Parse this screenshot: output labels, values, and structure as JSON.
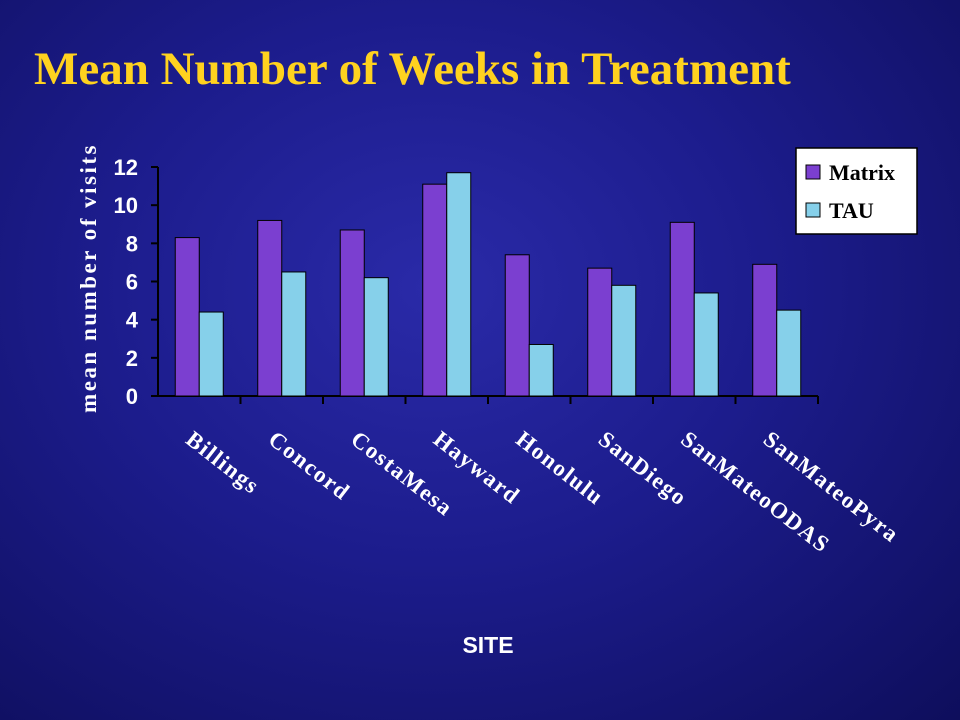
{
  "chart_data": {
    "type": "bar",
    "title": "Mean Number of Weeks in Treatment",
    "xlabel": "SITE",
    "ylabel": "mean number of visits",
    "categories": [
      "Billings",
      "Concord",
      "CostaMesa",
      "Hayward",
      "Honolulu",
      "SanDiego",
      "SanMateoODAS",
      "SanMateoPyra"
    ],
    "series": [
      {
        "name": "Matrix",
        "color": "#7b3fd0",
        "values": [
          8.3,
          9.2,
          8.7,
          11.1,
          7.4,
          6.7,
          9.1,
          6.9
        ]
      },
      {
        "name": "TAU",
        "color": "#86d0ea",
        "values": [
          4.4,
          6.5,
          6.2,
          11.7,
          2.7,
          5.8,
          5.4,
          4.5
        ]
      }
    ],
    "ylim": [
      0,
      12
    ],
    "yticks": [
      "0",
      "2",
      "4",
      "6",
      "8",
      "10",
      "12"
    ],
    "grid": false,
    "legend_position": "top-right"
  }
}
